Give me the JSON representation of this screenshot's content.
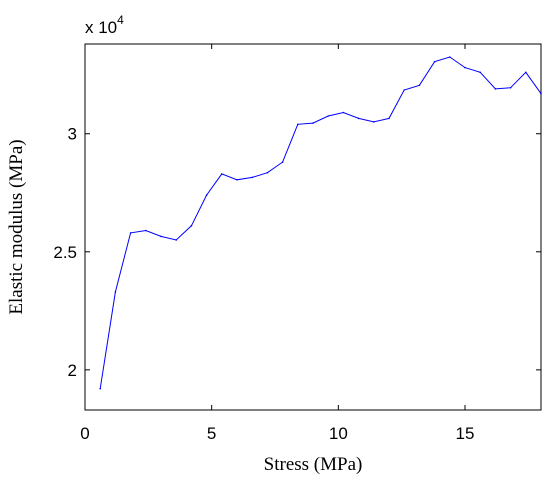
{
  "chart_data": {
    "type": "line",
    "xlabel": "Stress (MPa)",
    "ylabel": "Elastic modulus (MPa)",
    "xlim": [
      0,
      18
    ],
    "ylim": [
      18300,
      33800
    ],
    "y_multiplier": {
      "base": "x 10",
      "exponent": "4"
    },
    "xticks": [
      0,
      5,
      10,
      15
    ],
    "yticks": [
      20000,
      25000,
      30000
    ],
    "ytick_labels": [
      "2",
      "2.5",
      "3"
    ],
    "grid": false,
    "line_color": "#0000ff",
    "x": [
      0.6,
      1.2,
      1.8,
      2.4,
      3.0,
      3.6,
      4.2,
      4.8,
      5.4,
      6.0,
      6.6,
      7.2,
      7.8,
      8.4,
      9.0,
      9.6,
      10.2,
      10.8,
      11.4,
      12.0,
      12.6,
      13.2,
      13.8,
      14.4,
      15.0,
      15.6,
      16.2,
      16.8,
      17.4,
      18.0
    ],
    "values": [
      19200,
      23300,
      25800,
      25900,
      25650,
      25500,
      26100,
      27400,
      28300,
      28050,
      28150,
      28350,
      28800,
      30400,
      30450,
      30750,
      30900,
      30650,
      30500,
      30650,
      31850,
      32050,
      33050,
      33250,
      32800,
      32600,
      31900,
      31950,
      32600,
      31700
    ]
  }
}
